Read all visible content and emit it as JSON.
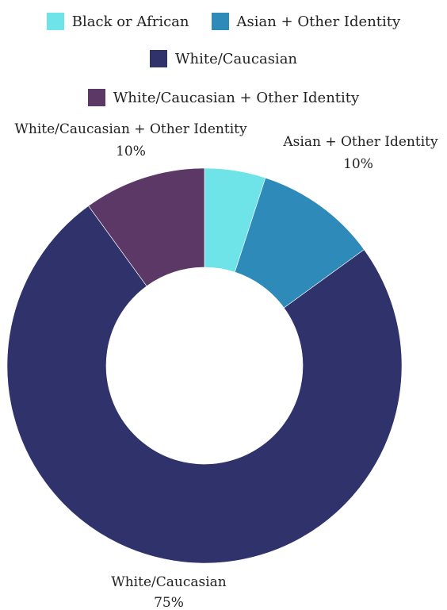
{
  "chart_data": {
    "type": "pie",
    "style": "donut",
    "categories": [
      "Black or African",
      "Asian + Other Identity",
      "White/Caucasian",
      "White/Caucasian + Other Identity"
    ],
    "values": [
      5,
      10,
      75,
      10
    ],
    "colors": [
      "#6ee3e8",
      "#2e8ab9",
      "#30336b",
      "#5c3866"
    ],
    "slice_labels": [
      {
        "name": "",
        "value": ""
      },
      {
        "name": "Asian + Other Identity",
        "value": "10%"
      },
      {
        "name": "White/Caucasian",
        "value": "75%"
      },
      {
        "name": "White/Caucasian + Other Identity",
        "value": "10%"
      }
    ],
    "legend": {
      "placement": "top",
      "items": [
        {
          "label": "Black or African",
          "color": "#6ee3e8"
        },
        {
          "label": "Asian + Other Identity",
          "color": "#2e8ab9"
        },
        {
          "label": "White/Caucasian",
          "color": "#30336b"
        },
        {
          "label": "White/Caucasian + Other Identity",
          "color": "#5c3866"
        }
      ]
    }
  }
}
